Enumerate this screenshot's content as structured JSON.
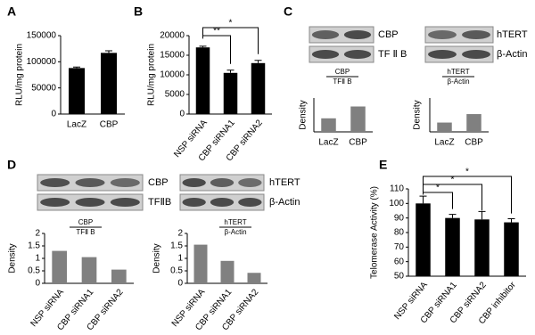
{
  "chart_data": [
    {
      "type": "bar",
      "panel_label": "A",
      "y_label": "RLU/mg protein",
      "categories": [
        "LacZ",
        "CBP"
      ],
      "values": [
        88000,
        117000
      ],
      "errors": [
        2000,
        4000
      ],
      "color": "#000000",
      "ylim": [
        0,
        150000
      ],
      "yticks": [
        0,
        50000,
        100000,
        150000
      ]
    },
    {
      "type": "bar",
      "panel_label": "B",
      "y_label": "RLU/mg protein",
      "categories": [
        "NSP siRNA",
        "CBP siRNA1",
        "CBP siRNA2"
      ],
      "values": [
        17000,
        10500,
        13000
      ],
      "errors": [
        300,
        700,
        700
      ],
      "color": "#000000",
      "ylim": [
        0,
        20000
      ],
      "yticks": [
        0,
        5000,
        10000,
        15000,
        20000
      ],
      "significance": [
        "**",
        "*"
      ]
    },
    {
      "type": "bar",
      "panel_label": "C",
      "y_label": "Density",
      "categories": [
        "LacZ",
        "CBP"
      ],
      "values": [
        0.8,
        1.5
      ],
      "color": "#808080",
      "ylim": [
        0,
        2
      ],
      "blot_labels": [
        "CBP",
        "TF Ⅱ B"
      ],
      "ratio_label": {
        "numerator": "CBP",
        "denominator": "TFⅡ B"
      }
    },
    {
      "type": "bar",
      "y_label": "Density",
      "categories": [
        "LacZ",
        "CBP"
      ],
      "values": [
        0.55,
        1.05
      ],
      "color": "#808080",
      "ylim": [
        0,
        2
      ],
      "blot_labels": [
        "hTERT",
        "β-Actin"
      ],
      "ratio_label": {
        "numerator": "hTERT",
        "denominator": "β-Actin"
      }
    },
    {
      "type": "bar",
      "panel_label": "D",
      "y_label": "Density",
      "categories": [
        "NSP siRNA",
        "CBP siRNA1",
        "CBP siRNA2"
      ],
      "values": [
        1.3,
        1.05,
        0.55
      ],
      "color": "#808080",
      "ylim": [
        0,
        2
      ],
      "yticks": [
        0,
        0.5,
        1,
        1.5,
        2
      ],
      "blot_labels": [
        "CBP",
        "TFⅡB"
      ],
      "ratio_label": {
        "numerator": "CBP",
        "denominator": "TFⅡ B"
      }
    },
    {
      "type": "bar",
      "y_label": "Density",
      "categories": [
        "NSP siRNA",
        "CBP siRNA1",
        "CBP siRNA2"
      ],
      "values": [
        1.55,
        0.9,
        0.42
      ],
      "color": "#808080",
      "ylim": [
        0,
        2
      ],
      "yticks": [
        0,
        0.5,
        1,
        1.5,
        2
      ],
      "blot_labels": [
        "hTERT",
        "β-Actin"
      ],
      "ratio_label": {
        "numerator": "hTERT",
        "denominator": "β-Actin"
      }
    },
    {
      "type": "bar",
      "panel_label": "E",
      "y_label": "Telomerase Activity (%)",
      "categories": [
        "NSP siRNA",
        "CBP siRNA1",
        "CBP siRNA2",
        "CBP inhibitor"
      ],
      "values": [
        100,
        90,
        89,
        87
      ],
      "errors": [
        5,
        2.5,
        5.5,
        2.5
      ],
      "color": "#000000",
      "ylim": [
        50,
        110
      ],
      "yticks": [
        50,
        60,
        70,
        80,
        90,
        100,
        110
      ],
      "significance": [
        "*",
        "*",
        "*"
      ]
    }
  ]
}
